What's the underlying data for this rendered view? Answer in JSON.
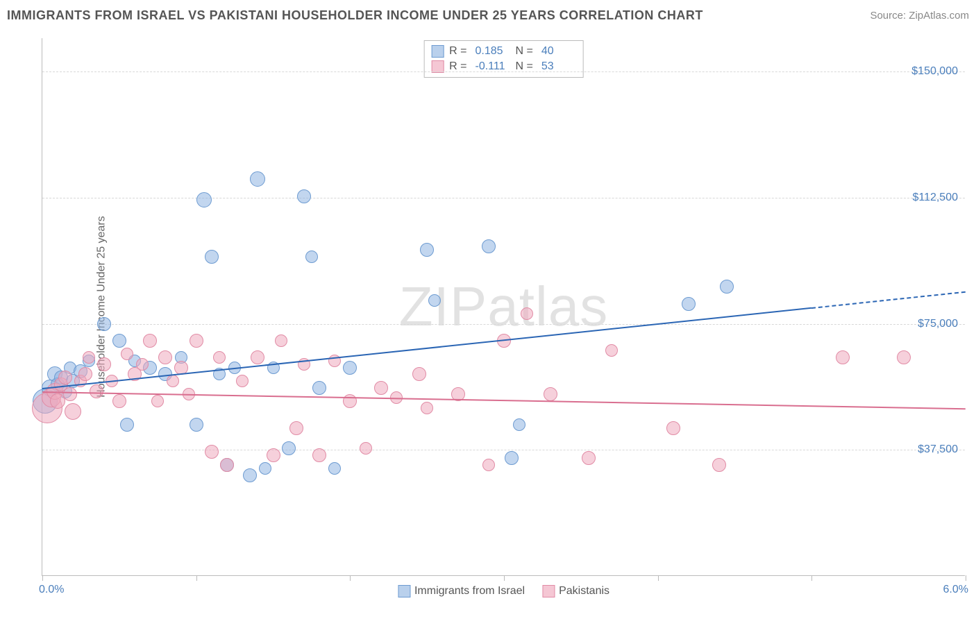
{
  "title": "IMMIGRANTS FROM ISRAEL VS PAKISTANI HOUSEHOLDER INCOME UNDER 25 YEARS CORRELATION CHART",
  "source_label": "Source: ZipAtlas.com",
  "watermark": {
    "zip": "ZIP",
    "atlas": "atlas"
  },
  "chart": {
    "type": "scatter",
    "background_color": "#ffffff",
    "grid_color": "#d8d8d8",
    "axis_color": "#bbbbbb",
    "x_axis": {
      "min": 0.0,
      "max": 6.0,
      "ticks": [
        0.0,
        1.0,
        2.0,
        3.0,
        4.0,
        5.0,
        6.0
      ],
      "label_min": "0.0%",
      "label_max": "6.0%",
      "label_color": "#4a7ebb",
      "label_fontsize": 16
    },
    "y_axis": {
      "title": "Householder Income Under 25 years",
      "min": 0,
      "max": 160000,
      "gridlines": [
        37500,
        75000,
        112500,
        150000
      ],
      "tick_labels": [
        "$37,500",
        "$75,000",
        "$112,500",
        "$150,000"
      ],
      "label_color": "#4a7ebb",
      "label_fontsize": 16,
      "title_color": "#666666",
      "title_fontsize": 16
    },
    "series": [
      {
        "name": "Immigrants from Israel",
        "marker_fill": "rgba(143,181,225,0.55)",
        "marker_stroke": "#6d9bd1",
        "swatch_fill": "#b9d0ec",
        "swatch_stroke": "#6d9bd1",
        "R": "0.185",
        "N": "40",
        "trend": {
          "x1": 0.0,
          "y1": 56000,
          "x2": 5.0,
          "y2": 80000,
          "dash_to_x": 6.0,
          "dash_to_y": 84800,
          "color": "#2a65b4",
          "width": 2
        },
        "base_radius": 10,
        "points": [
          {
            "x": 0.02,
            "y": 52000,
            "r": 18
          },
          {
            "x": 0.05,
            "y": 56000,
            "r": 12
          },
          {
            "x": 0.08,
            "y": 60000,
            "r": 11
          },
          {
            "x": 0.1,
            "y": 57000,
            "r": 10
          },
          {
            "x": 0.12,
            "y": 59000,
            "r": 10
          },
          {
            "x": 0.15,
            "y": 55000,
            "r": 10
          },
          {
            "x": 0.18,
            "y": 62000,
            "r": 9
          },
          {
            "x": 0.2,
            "y": 58000,
            "r": 10
          },
          {
            "x": 0.25,
            "y": 61000,
            "r": 10
          },
          {
            "x": 0.3,
            "y": 64000,
            "r": 9
          },
          {
            "x": 0.4,
            "y": 75000,
            "r": 10
          },
          {
            "x": 0.5,
            "y": 70000,
            "r": 10
          },
          {
            "x": 0.55,
            "y": 45000,
            "r": 10
          },
          {
            "x": 0.6,
            "y": 64000,
            "r": 9
          },
          {
            "x": 0.7,
            "y": 62000,
            "r": 10
          },
          {
            "x": 0.8,
            "y": 60000,
            "r": 10
          },
          {
            "x": 0.9,
            "y": 65000,
            "r": 9
          },
          {
            "x": 1.0,
            "y": 45000,
            "r": 10
          },
          {
            "x": 1.05,
            "y": 112000,
            "r": 11
          },
          {
            "x": 1.1,
            "y": 95000,
            "r": 10
          },
          {
            "x": 1.15,
            "y": 60000,
            "r": 9
          },
          {
            "x": 1.2,
            "y": 33000,
            "r": 10
          },
          {
            "x": 1.25,
            "y": 62000,
            "r": 9
          },
          {
            "x": 1.35,
            "y": 30000,
            "r": 10
          },
          {
            "x": 1.4,
            "y": 118000,
            "r": 11
          },
          {
            "x": 1.45,
            "y": 32000,
            "r": 9
          },
          {
            "x": 1.5,
            "y": 62000,
            "r": 9
          },
          {
            "x": 1.6,
            "y": 38000,
            "r": 10
          },
          {
            "x": 1.7,
            "y": 113000,
            "r": 10
          },
          {
            "x": 1.75,
            "y": 95000,
            "r": 9
          },
          {
            "x": 1.8,
            "y": 56000,
            "r": 10
          },
          {
            "x": 1.9,
            "y": 32000,
            "r": 9
          },
          {
            "x": 2.0,
            "y": 62000,
            "r": 10
          },
          {
            "x": 2.5,
            "y": 97000,
            "r": 10
          },
          {
            "x": 2.55,
            "y": 82000,
            "r": 9
          },
          {
            "x": 2.9,
            "y": 98000,
            "r": 10
          },
          {
            "x": 3.05,
            "y": 35000,
            "r": 10
          },
          {
            "x": 3.1,
            "y": 45000,
            "r": 9
          },
          {
            "x": 4.2,
            "y": 81000,
            "r": 10
          },
          {
            "x": 4.45,
            "y": 86000,
            "r": 10
          }
        ]
      },
      {
        "name": "Pakistanis",
        "marker_fill": "rgba(238,170,190,0.55)",
        "marker_stroke": "#e18ba5",
        "swatch_fill": "#f5c7d4",
        "swatch_stroke": "#e18ba5",
        "R": "-0.111",
        "N": "53",
        "trend": {
          "x1": 0.0,
          "y1": 55000,
          "x2": 6.0,
          "y2": 50000,
          "color": "#d96e8f",
          "width": 2
        },
        "base_radius": 10,
        "points": [
          {
            "x": 0.03,
            "y": 50000,
            "r": 22
          },
          {
            "x": 0.06,
            "y": 53000,
            "r": 14
          },
          {
            "x": 0.08,
            "y": 55000,
            "r": 12
          },
          {
            "x": 0.1,
            "y": 52000,
            "r": 11
          },
          {
            "x": 0.12,
            "y": 57000,
            "r": 10
          },
          {
            "x": 0.15,
            "y": 59000,
            "r": 10
          },
          {
            "x": 0.18,
            "y": 54000,
            "r": 10
          },
          {
            "x": 0.2,
            "y": 49000,
            "r": 12
          },
          {
            "x": 0.25,
            "y": 58000,
            "r": 9
          },
          {
            "x": 0.28,
            "y": 60000,
            "r": 10
          },
          {
            "x": 0.3,
            "y": 65000,
            "r": 9
          },
          {
            "x": 0.35,
            "y": 55000,
            "r": 10
          },
          {
            "x": 0.4,
            "y": 63000,
            "r": 10
          },
          {
            "x": 0.45,
            "y": 58000,
            "r": 9
          },
          {
            "x": 0.5,
            "y": 52000,
            "r": 10
          },
          {
            "x": 0.55,
            "y": 66000,
            "r": 9
          },
          {
            "x": 0.6,
            "y": 60000,
            "r": 10
          },
          {
            "x": 0.65,
            "y": 63000,
            "r": 9
          },
          {
            "x": 0.7,
            "y": 70000,
            "r": 10
          },
          {
            "x": 0.75,
            "y": 52000,
            "r": 9
          },
          {
            "x": 0.8,
            "y": 65000,
            "r": 10
          },
          {
            "x": 0.85,
            "y": 58000,
            "r": 9
          },
          {
            "x": 0.9,
            "y": 62000,
            "r": 10
          },
          {
            "x": 0.95,
            "y": 54000,
            "r": 9
          },
          {
            "x": 1.0,
            "y": 70000,
            "r": 10
          },
          {
            "x": 1.1,
            "y": 37000,
            "r": 10
          },
          {
            "x": 1.15,
            "y": 65000,
            "r": 9
          },
          {
            "x": 1.2,
            "y": 33000,
            "r": 10
          },
          {
            "x": 1.3,
            "y": 58000,
            "r": 9
          },
          {
            "x": 1.4,
            "y": 65000,
            "r": 10
          },
          {
            "x": 1.5,
            "y": 36000,
            "r": 10
          },
          {
            "x": 1.55,
            "y": 70000,
            "r": 9
          },
          {
            "x": 1.65,
            "y": 44000,
            "r": 10
          },
          {
            "x": 1.7,
            "y": 63000,
            "r": 9
          },
          {
            "x": 1.8,
            "y": 36000,
            "r": 10
          },
          {
            "x": 1.9,
            "y": 64000,
            "r": 9
          },
          {
            "x": 2.0,
            "y": 52000,
            "r": 10
          },
          {
            "x": 2.1,
            "y": 38000,
            "r": 9
          },
          {
            "x": 2.2,
            "y": 56000,
            "r": 10
          },
          {
            "x": 2.3,
            "y": 53000,
            "r": 9
          },
          {
            "x": 2.45,
            "y": 60000,
            "r": 10
          },
          {
            "x": 2.5,
            "y": 50000,
            "r": 9
          },
          {
            "x": 2.7,
            "y": 54000,
            "r": 10
          },
          {
            "x": 2.9,
            "y": 33000,
            "r": 9
          },
          {
            "x": 3.0,
            "y": 70000,
            "r": 10
          },
          {
            "x": 3.15,
            "y": 78000,
            "r": 9
          },
          {
            "x": 3.3,
            "y": 54000,
            "r": 10
          },
          {
            "x": 3.55,
            "y": 35000,
            "r": 10
          },
          {
            "x": 3.7,
            "y": 67000,
            "r": 9
          },
          {
            "x": 4.1,
            "y": 44000,
            "r": 10
          },
          {
            "x": 4.4,
            "y": 33000,
            "r": 10
          },
          {
            "x": 5.2,
            "y": 65000,
            "r": 10
          },
          {
            "x": 5.6,
            "y": 65000,
            "r": 10
          }
        ]
      }
    ]
  },
  "legend_top": {
    "R_label": "R  =",
    "N_label": "N  ="
  },
  "legend_bottom": {}
}
